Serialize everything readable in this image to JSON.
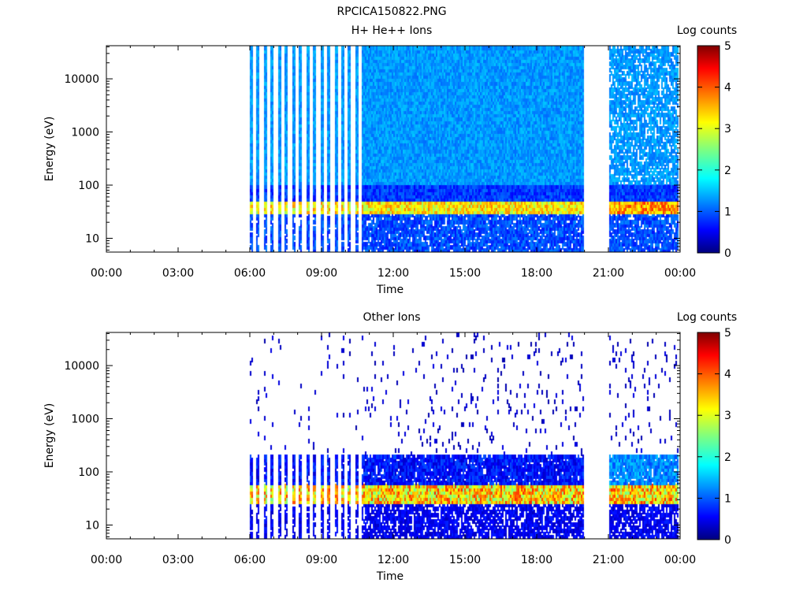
{
  "page_title": "RPCICA150822.PNG",
  "chart_data": [
    {
      "type": "heatmap",
      "title": "H+ He++ Ions",
      "xlabel": "Time",
      "ylabel": "Energy (eV)",
      "x_tick_labels": [
        "00:00",
        "03:00",
        "06:00",
        "09:00",
        "12:00",
        "15:00",
        "18:00",
        "21:00",
        "00:00"
      ],
      "x_range_hours": [
        0,
        24
      ],
      "y_scale": "log",
      "y_range": [
        5.5,
        42000
      ],
      "y_tick_values": [
        10,
        100,
        1000,
        10000
      ],
      "y_tick_labels": [
        "10",
        "100",
        "1000",
        "10000"
      ],
      "colorbar": {
        "label": "Log counts",
        "range": [
          0,
          5
        ],
        "tick_labels": [
          "0",
          "1",
          "2",
          "3",
          "4",
          "5"
        ]
      },
      "data_gaps_hours": [
        [
          0,
          6.0
        ],
        [
          19.95,
          21.05
        ]
      ],
      "sparse_interval_hours": [
        6.0,
        10.7
      ],
      "data_intervals_hours": [
        [
          6.0,
          19.95
        ],
        [
          21.05,
          23.95
        ]
      ],
      "peak_energy_band_eV": [
        28,
        55
      ],
      "peak_log_counts": 3.5,
      "background_log_counts": 1.0
    },
    {
      "type": "heatmap",
      "title": "Other Ions",
      "xlabel": "Time",
      "ylabel": "Energy (eV)",
      "x_tick_labels": [
        "00:00",
        "03:00",
        "06:00",
        "09:00",
        "12:00",
        "15:00",
        "18:00",
        "21:00",
        "00:00"
      ],
      "x_range_hours": [
        0,
        24
      ],
      "y_scale": "log",
      "y_range": [
        5.5,
        42000
      ],
      "y_tick_values": [
        10,
        100,
        1000,
        10000
      ],
      "y_tick_labels": [
        "10",
        "100",
        "1000",
        "10000"
      ],
      "colorbar": {
        "label": "Log counts",
        "range": [
          0,
          5
        ],
        "tick_labels": [
          "0",
          "1",
          "2",
          "3",
          "4",
          "5"
        ]
      },
      "data_gaps_hours": [
        [
          0,
          6.0
        ],
        [
          19.95,
          21.05
        ]
      ],
      "sparse_interval_hours": [
        6.0,
        10.7
      ],
      "data_intervals_hours": [
        [
          6.0,
          19.95
        ],
        [
          21.05,
          23.95
        ]
      ],
      "peak_energy_band_eV": [
        25,
        60
      ],
      "peak_log_counts": 4.0,
      "background_log_counts": 0.3
    }
  ]
}
